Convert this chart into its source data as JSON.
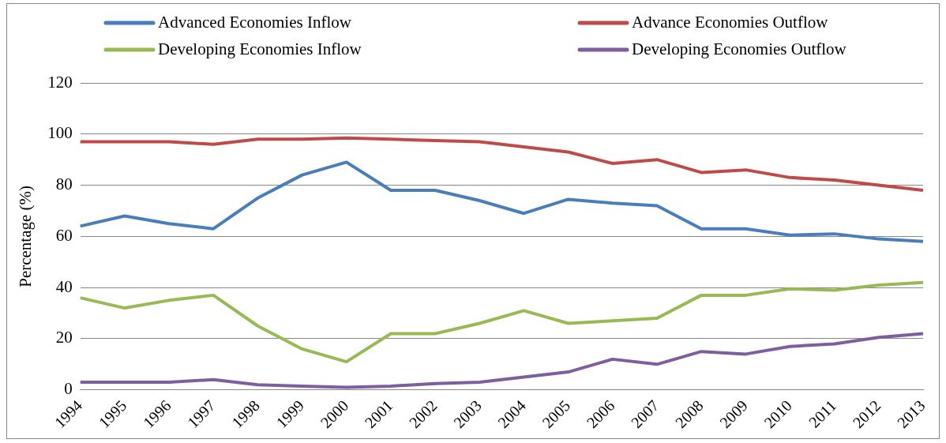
{
  "chart_data": {
    "type": "line",
    "ylabel": "Percentage (%)",
    "categories": [
      "1994",
      "1995",
      "1996",
      "1997",
      "1998",
      "1999",
      "2000",
      "2001",
      "2002",
      "2003",
      "2004",
      "2005",
      "2006",
      "2007",
      "2008",
      "2009",
      "2010",
      "2011",
      "2012",
      "2013"
    ],
    "series": [
      {
        "name": "Advanced Economies Inflow",
        "color": "#4a7ebb",
        "values": [
          64,
          68,
          65,
          63,
          75,
          84,
          89,
          78,
          78,
          74,
          69,
          74.5,
          73,
          72,
          63,
          63,
          60.5,
          61,
          59,
          58
        ]
      },
      {
        "name": "Advance Economies Outflow",
        "color": "#be4b48",
        "values": [
          97,
          97,
          97,
          96,
          98,
          98,
          98.5,
          98,
          97.5,
          97,
          95,
          93,
          88.5,
          90,
          85,
          86,
          83,
          82,
          80,
          78
        ]
      },
      {
        "name": "Developing Economies Inflow",
        "color": "#98b954",
        "values": [
          36,
          32,
          35,
          37,
          25,
          16,
          11,
          22,
          22,
          26,
          31,
          26,
          27,
          28,
          37,
          37,
          39.5,
          39,
          41,
          42
        ]
      },
      {
        "name": "Developing Economies Outflow",
        "color": "#7d5fa0",
        "values": [
          3,
          3,
          3,
          4,
          2,
          1.5,
          1,
          1.5,
          2.5,
          3,
          5,
          7,
          12,
          10,
          15,
          14,
          17,
          18,
          20.5,
          22
        ]
      }
    ],
    "ylim": [
      0,
      120
    ],
    "yticks": [
      0,
      20,
      40,
      60,
      80,
      100,
      120
    ],
    "grid": "y",
    "legend": "top",
    "marker": "none",
    "line_style": "solid"
  }
}
